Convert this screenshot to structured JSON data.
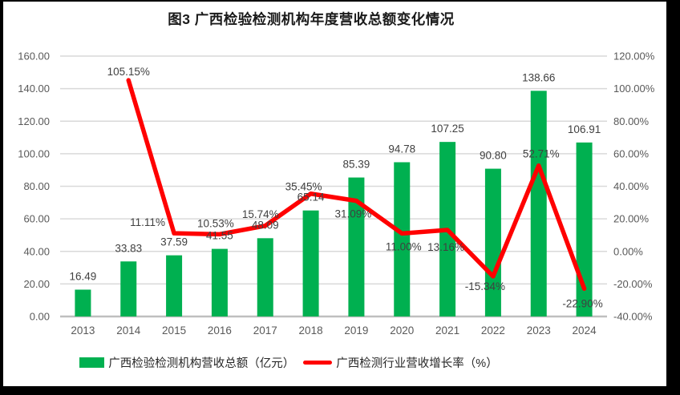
{
  "title": "图3 广西检验检测机构年度营收总额变化情况",
  "chart_data": {
    "type": "combo",
    "categories": [
      "2013",
      "2014",
      "2015",
      "2016",
      "2017",
      "2018",
      "2019",
      "2020",
      "2021",
      "2022",
      "2023",
      "2024"
    ],
    "series": [
      {
        "name": "广西检验检测机构营收总额（亿元）",
        "type": "bar",
        "axis": "left",
        "color": "#00B050",
        "values": [
          16.49,
          33.83,
          37.59,
          41.55,
          48.09,
          65.14,
          85.39,
          94.78,
          107.25,
          90.8,
          138.66,
          106.91
        ],
        "labels": [
          "16.49",
          "33.83",
          "37.59",
          "41.55",
          "48.09",
          "65.14",
          "85.39",
          "94.78",
          "107.25",
          "90.80",
          "138.66",
          "106.91"
        ]
      },
      {
        "name": "广西检测行业营收增长率（%）",
        "type": "line",
        "axis": "right",
        "color": "#FF0000",
        "values": [
          null,
          105.15,
          11.11,
          10.53,
          15.74,
          35.45,
          31.09,
          11.0,
          13.16,
          -15.34,
          52.71,
          -22.9
        ],
        "labels": [
          null,
          "105.15%",
          "11.11%",
          "10.53%",
          "15.74%",
          "35.45%",
          "31.09%",
          "11.00%",
          "13.16%",
          "-15.34%",
          "52.71%",
          "-22.90%"
        ]
      }
    ],
    "left_axis": {
      "min": 0,
      "max": 160,
      "step": 20,
      "ticks": [
        "160.00",
        "140.00",
        "120.00",
        "100.00",
        "80.00",
        "60.00",
        "40.00",
        "20.00",
        "0.00"
      ]
    },
    "right_axis": {
      "min": -40,
      "max": 120,
      "step": 20,
      "ticks": [
        "120.00%",
        "100.00%",
        "80.00%",
        "60.00%",
        "40.00%",
        "20.00%",
        "0.00%",
        "-20.00%",
        "-40.00%"
      ]
    },
    "grid": true,
    "legend_position": "bottom",
    "layout_hints": {
      "line_label_dx": [
        0,
        0,
        -33,
        -5,
        -6,
        -9,
        -4,
        2,
        -2,
        -10,
        3,
        -2
      ],
      "line_label_dy": [
        0,
        -6,
        -9,
        -9,
        -10,
        -4,
        21,
        21,
        26,
        17,
        -10,
        23
      ],
      "bar_label_dy": -12,
      "colors": {
        "grid": "#D9D9D9",
        "axis_line": "#BFBFBF",
        "tick_label": "#595959",
        "data_label": "#404040"
      }
    }
  },
  "legend": {
    "items": [
      {
        "label": "广西检验检测机构营收总额（亿元）",
        "color": "#00B050",
        "type": "bar"
      },
      {
        "label": "广西检测行业营收增长率（%）",
        "color": "#FF0000",
        "type": "line"
      }
    ]
  }
}
